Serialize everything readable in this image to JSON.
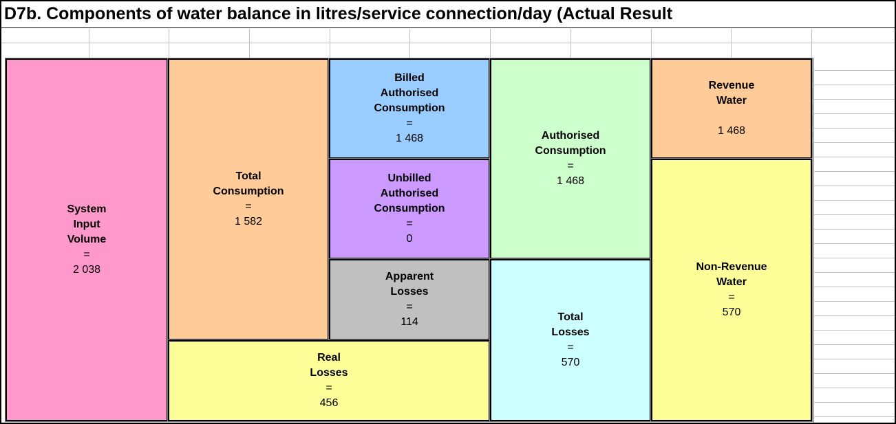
{
  "title": "D7b. Components of water balance in litres/service connection/day (Actual Result",
  "boxes": [
    {
      "label": [
        "System",
        "Input",
        "Volume"
      ],
      "eq": "=",
      "value": "2 038"
    },
    {
      "label": [
        "Total",
        "Consumption"
      ],
      "eq": "=",
      "value": "1 582"
    },
    {
      "label": [
        "Billed",
        "Authorised",
        "Consumption"
      ],
      "eq": "=",
      "value": "1 468"
    },
    {
      "label": [
        "Unbilled",
        "Authorised",
        "Consumption"
      ],
      "eq": "=",
      "value": "0"
    },
    {
      "label": [
        "Apparent",
        "Losses"
      ],
      "eq": "=",
      "value": "114"
    },
    {
      "label": [
        "Real",
        "Losses"
      ],
      "eq": "=",
      "value": "456"
    },
    {
      "label": [
        "Authorised",
        "Consumption"
      ],
      "eq": "=",
      "value": "1 468"
    },
    {
      "label": [
        "Total",
        "Losses"
      ],
      "eq": "=",
      "value": "570"
    },
    {
      "label": [
        "Revenue",
        "Water"
      ],
      "value": "1 468"
    },
    {
      "label": [
        "Non-Revenue",
        "Water"
      ],
      "eq": "=",
      "value": "570"
    }
  ]
}
